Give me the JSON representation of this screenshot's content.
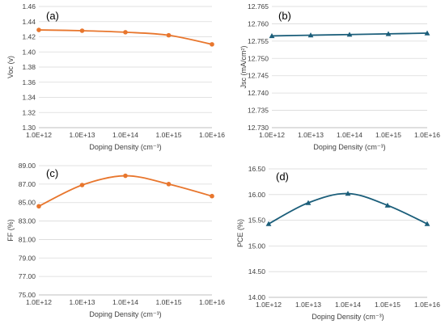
{
  "chart_data": [
    {
      "panel": "(a)",
      "type": "line",
      "xlabel": "Doping Density (cm⁻³)",
      "ylabel": "Voc (v)",
      "x": [
        1000000000000.0,
        10000000000000.0,
        100000000000000.0,
        1000000000000000.0,
        1e+16
      ],
      "x_tick_labels": [
        "1.0E+12",
        "1.0E+13",
        "1.0E+14",
        "1.0E+15",
        "1.0E+16"
      ],
      "x_scale": "log",
      "values": [
        1.429,
        1.428,
        1.426,
        1.422,
        1.41
      ],
      "ylim": [
        1.3,
        1.46
      ],
      "y_ticks": [
        "1.30",
        "1.32",
        "1.34",
        "1.36",
        "1.38",
        "1.40",
        "1.42",
        "1.44",
        "1.46"
      ],
      "marker": "circle",
      "color": "#E8762D",
      "grid": "horizontal"
    },
    {
      "panel": "(b)",
      "type": "line",
      "xlabel": "Doping Density (cm⁻³)",
      "ylabel": "Jsc (mA/cm²)",
      "x": [
        1000000000000.0,
        10000000000000.0,
        100000000000000.0,
        1000000000000000.0,
        1e+16
      ],
      "x_tick_labels": [
        "1.0E+12",
        "1.0E+13",
        "1.0E+14",
        "1.0E+15",
        "1.0E+16"
      ],
      "x_scale": "log",
      "values": [
        12.7565,
        12.7567,
        12.7569,
        12.7571,
        12.7573
      ],
      "ylim": [
        12.73,
        12.765
      ],
      "y_ticks": [
        "12.730",
        "12.735",
        "12.740",
        "12.745",
        "12.750",
        "12.755",
        "12.760",
        "12.765"
      ],
      "marker": "triangle",
      "color": "#1B5E7A",
      "grid": "horizontal"
    },
    {
      "panel": "(c)",
      "type": "line",
      "xlabel": "Doping Density (cm⁻³)",
      "ylabel": "FF (%)",
      "x": [
        1000000000000.0,
        10000000000000.0,
        100000000000000.0,
        1000000000000000.0,
        1e+16
      ],
      "x_tick_labels": [
        "1.0E+12",
        "1.0E+13",
        "1.0E+14",
        "1.0E+15",
        "1.0E+16"
      ],
      "x_scale": "log",
      "values": [
        84.6,
        86.9,
        87.9,
        87.0,
        85.7
      ],
      "ylim": [
        75.0,
        89.0
      ],
      "y_ticks": [
        "75.00",
        "77.00",
        "79.00",
        "81.00",
        "83.00",
        "85.00",
        "87.00",
        "89.00"
      ],
      "marker": "circle",
      "color": "#E8762D",
      "grid": "horizontal"
    },
    {
      "panel": "(d)",
      "type": "line",
      "xlabel": "Doping Density (cm⁻³)",
      "ylabel": "PCE (%)",
      "x": [
        1000000000000.0,
        10000000000000.0,
        100000000000000.0,
        1000000000000000.0,
        1e+16
      ],
      "x_tick_labels": [
        "1.0E+12",
        "1.0E+13",
        "1.0E+14",
        "1.0E+15",
        "1.0E+16"
      ],
      "x_scale": "log",
      "values": [
        15.43,
        15.84,
        16.02,
        15.79,
        15.43
      ],
      "ylim": [
        14.0,
        16.5
      ],
      "y_ticks": [
        "14.00",
        "14.50",
        "15.00",
        "15.50",
        "16.00",
        "16.50"
      ],
      "marker": "triangle",
      "color": "#1B5E7A",
      "grid": "horizontal"
    }
  ]
}
